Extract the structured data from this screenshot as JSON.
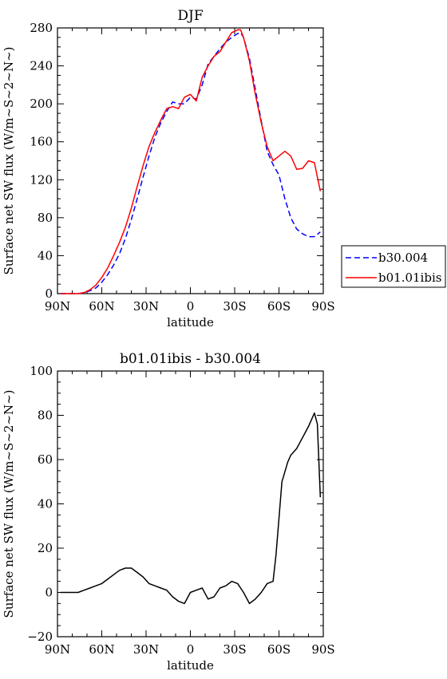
{
  "chart_data": [
    {
      "type": "line",
      "title": "DJF",
      "xlabel": "latitude",
      "ylabel": "Surface net SW flux (W/m~S~2~N~)",
      "xlim": [
        90,
        -90
      ],
      "ylim": [
        0,
        280
      ],
      "x_ticks": [
        90,
        60,
        30,
        0,
        -30,
        -60,
        -90
      ],
      "x_tick_labels": [
        "90N",
        "60N",
        "30N",
        "0",
        "30S",
        "60S",
        "90S"
      ],
      "y_ticks": [
        0,
        40,
        80,
        120,
        160,
        200,
        240,
        280
      ],
      "y_tick_labels": [
        "0",
        "40",
        "80",
        "120",
        "160",
        "200",
        "240",
        "280"
      ],
      "legend_position": "outside-right",
      "series": [
        {
          "name": "b30.004",
          "color": "#0000ff",
          "dash": "dashed",
          "x": [
            88,
            84,
            80,
            76,
            72,
            68,
            64,
            60,
            56,
            52,
            48,
            44,
            40,
            36,
            32,
            28,
            24,
            20,
            16,
            12,
            8,
            4,
            0,
            -4,
            -8,
            -12,
            -16,
            -20,
            -24,
            -28,
            -32,
            -34,
            -36,
            -40,
            -44,
            -48,
            -52,
            -56,
            -60,
            -64,
            -68,
            -72,
            -76,
            -80,
            -84,
            -88
          ],
          "y": [
            0,
            0,
            0,
            0,
            1,
            3,
            6,
            12,
            20,
            30,
            42,
            58,
            78,
            100,
            123,
            145,
            165,
            180,
            192,
            202,
            200,
            200,
            207,
            205,
            220,
            242,
            250,
            258,
            265,
            270,
            274,
            275,
            270,
            248,
            215,
            182,
            150,
            136,
            125,
            100,
            80,
            68,
            63,
            60,
            60,
            65
          ]
        },
        {
          "name": "b01.01ibis",
          "color": "#ff0000",
          "dash": "solid",
          "x": [
            88,
            84,
            80,
            76,
            72,
            68,
            64,
            60,
            56,
            52,
            48,
            44,
            40,
            36,
            32,
            28,
            24,
            20,
            16,
            12,
            8,
            4,
            0,
            -4,
            -8,
            -12,
            -16,
            -20,
            -24,
            -28,
            -32,
            -34,
            -36,
            -40,
            -44,
            -48,
            -52,
            -56,
            -60,
            -64,
            -68,
            -72,
            -76,
            -80,
            -84,
            -88
          ],
          "y": [
            0,
            0,
            0,
            0,
            1,
            4,
            9,
            17,
            27,
            40,
            54,
            70,
            90,
            113,
            135,
            155,
            170,
            183,
            195,
            197,
            195,
            207,
            210,
            203,
            228,
            240,
            250,
            255,
            265,
            275,
            278,
            278,
            270,
            245,
            210,
            180,
            155,
            140,
            145,
            150,
            145,
            131,
            132,
            140,
            138,
            108
          ]
        }
      ]
    },
    {
      "type": "line",
      "title": "b01.01ibis - b30.004",
      "xlabel": "latitude",
      "ylabel": "Surface net SW flux (W/m~S~2~N~)",
      "xlim": [
        90,
        -90
      ],
      "ylim": [
        -20,
        100
      ],
      "x_ticks": [
        90,
        60,
        30,
        0,
        -30,
        -60,
        -90
      ],
      "x_tick_labels": [
        "90N",
        "60N",
        "30N",
        "0",
        "30S",
        "60S",
        "90S"
      ],
      "y_ticks": [
        -20,
        0,
        20,
        40,
        60,
        80,
        100
      ],
      "y_tick_labels": [
        "−20",
        "0",
        "20",
        "40",
        "60",
        "80",
        "100"
      ],
      "series": [
        {
          "color": "#000000",
          "dash": "solid",
          "x": [
            88,
            84,
            80,
            76,
            72,
            68,
            64,
            60,
            56,
            52,
            48,
            44,
            40,
            36,
            32,
            28,
            24,
            20,
            16,
            12,
            8,
            4,
            0,
            -4,
            -8,
            -12,
            -16,
            -20,
            -24,
            -28,
            -32,
            -36,
            -40,
            -44,
            -48,
            -52,
            -56,
            -58,
            -62,
            -66,
            -68,
            -72,
            -76,
            -80,
            -84,
            -86,
            -88
          ],
          "y": [
            0,
            0,
            0,
            0,
            1,
            2,
            3,
            4,
            6,
            8,
            10,
            11,
            11,
            9,
            7,
            4,
            3,
            2,
            1,
            -2,
            -4,
            -5,
            0,
            1,
            2,
            -3,
            -2,
            2,
            3,
            5,
            4,
            0,
            -5,
            -3,
            0,
            4,
            5,
            17,
            50,
            59,
            62,
            65,
            70,
            75,
            81,
            76,
            43
          ]
        }
      ]
    }
  ]
}
